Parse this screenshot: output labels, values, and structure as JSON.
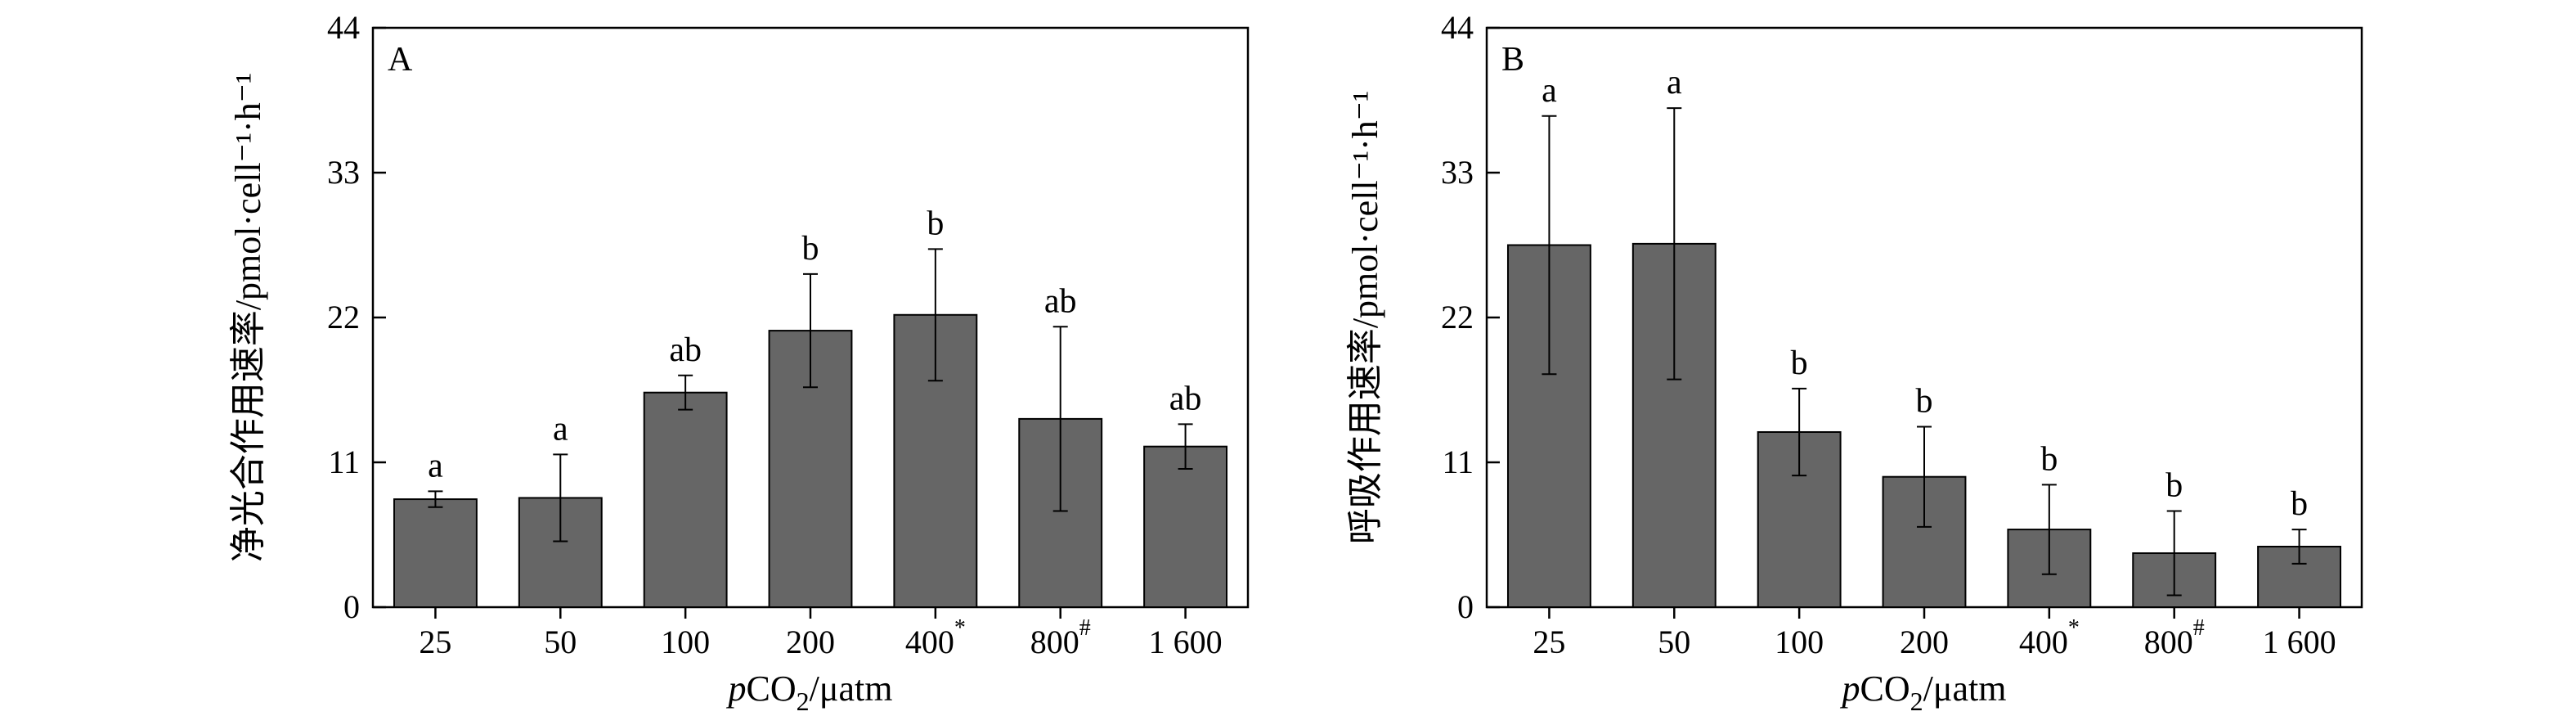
{
  "chart_data": [
    {
      "type": "bar",
      "panel_label": "A",
      "ylabel": "净光合作用速率/pmol·cell⁻¹·h⁻¹",
      "xlabel": "pCO₂/μatm",
      "categories": [
        "25",
        "50",
        "100",
        "200",
        "400*",
        "800#",
        "1 600"
      ],
      "values": [
        8.2,
        8.3,
        16.3,
        21.0,
        22.2,
        14.3,
        12.2
      ],
      "error": [
        0.6,
        3.3,
        1.3,
        4.3,
        5.0,
        7.0,
        1.7
      ],
      "significance": [
        "a",
        "a",
        "ab",
        "b",
        "b",
        "ab",
        "ab"
      ],
      "yticks": [
        0,
        11,
        22,
        33,
        44
      ],
      "ylim": [
        0,
        44
      ],
      "bar_color": "#666666",
      "grid": false
    },
    {
      "type": "bar",
      "panel_label": "B",
      "ylabel": "呼吸作用速率/pmol·cell⁻¹·h⁻¹",
      "xlabel": "pCO₂/μatm",
      "categories": [
        "25",
        "50",
        "100",
        "200",
        "400*",
        "800#",
        "1 600"
      ],
      "values": [
        27.5,
        27.6,
        13.3,
        9.9,
        5.9,
        4.1,
        4.6
      ],
      "error": [
        9.8,
        10.3,
        3.3,
        3.8,
        3.4,
        3.2,
        1.3
      ],
      "significance": [
        "a",
        "a",
        "b",
        "b",
        "b",
        "b",
        "b"
      ],
      "yticks": [
        0,
        11,
        22,
        33,
        44
      ],
      "ylim": [
        0,
        44
      ],
      "bar_color": "#666666",
      "grid": false
    }
  ]
}
